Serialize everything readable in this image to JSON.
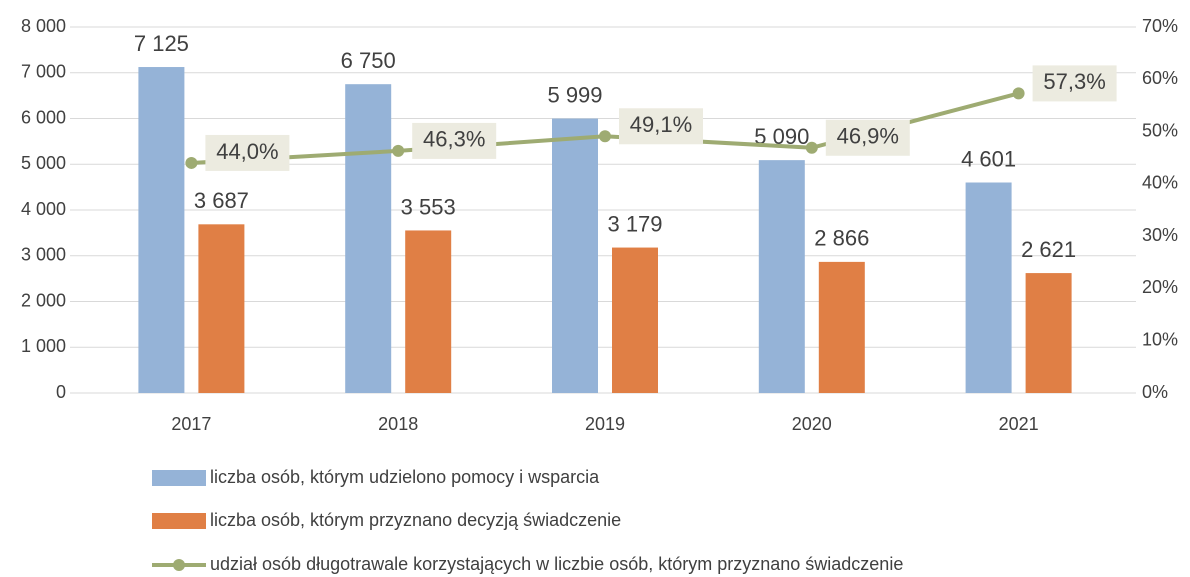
{
  "chart_data": {
    "type": "bar",
    "categories": [
      "2017",
      "2018",
      "2019",
      "2020",
      "2021"
    ],
    "series": [
      {
        "name": "liczba osób, którym udzielono pomocy i wsparcia",
        "type": "bar",
        "color": "#95b3d7",
        "values": [
          7125,
          6750,
          5999,
          5090,
          4601
        ],
        "value_labels": [
          "7 125",
          "6 750",
          "5 999",
          "5 090",
          "4 601"
        ]
      },
      {
        "name": "liczba osób, którym przyznano decyzją świadczenie",
        "type": "bar",
        "color": "#e07f45",
        "values": [
          3687,
          3553,
          3179,
          2866,
          2621
        ],
        "value_labels": [
          "3 687",
          "3 553",
          "3 179",
          "2 866",
          "2 621"
        ]
      },
      {
        "name": "udział osób długotrawale korzystających w liczbie osób, którym przyznano świadczenie",
        "type": "line",
        "axis": "y2",
        "color": "#9eab72",
        "values": [
          44.0,
          46.3,
          49.1,
          46.9,
          57.3
        ],
        "value_labels": [
          "44,0%",
          "46,3%",
          "49,1%",
          "46,9%",
          "57,3%"
        ]
      }
    ],
    "ylim": [
      0,
      8000
    ],
    "yticks": [
      0,
      {
        "value": 1000,
        "label": "1 000"
      },
      {
        "value": 2000,
        "label": "2 000"
      },
      {
        "value": 3000,
        "label": "3 000"
      },
      {
        "value": 4000,
        "label": "4 000"
      },
      {
        "value": 5000,
        "label": "5 000"
      },
      {
        "value": 6000,
        "label": "6 000"
      },
      {
        "value": 7000,
        "label": "7 000"
      },
      {
        "value": 8000,
        "label": "8 000"
      }
    ],
    "y2lim": [
      0,
      70
    ],
    "y2ticks": [
      {
        "value": 0,
        "label": "0%"
      },
      {
        "value": 10,
        "label": "10%"
      },
      {
        "value": 20,
        "label": "20%"
      },
      {
        "value": 30,
        "label": "30%"
      },
      {
        "value": 40,
        "label": "40%"
      },
      {
        "value": 50,
        "label": "50%"
      },
      {
        "value": 60,
        "label": "60%"
      },
      {
        "value": 70,
        "label": "70%"
      }
    ],
    "grid": true,
    "legend": "bottom"
  }
}
